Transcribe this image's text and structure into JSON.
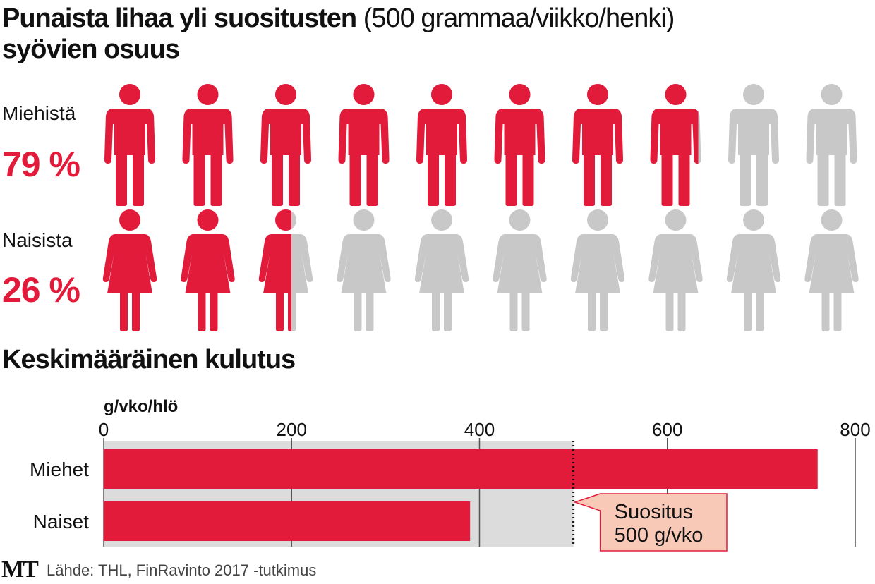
{
  "title": {
    "bold": "Punaista lihaa yli suositusten",
    "normal": "(500 grammaa/viikko/henki)",
    "line2": "syövien osuus"
  },
  "chart_data": [
    {
      "type": "pictogram",
      "categories": [
        "Miehistä",
        "Naisista"
      ],
      "values": [
        79,
        26
      ],
      "value_labels": [
        "79 %",
        "26 %"
      ],
      "icons": [
        "male",
        "female"
      ],
      "color": "#e31b3b",
      "base_color": "#c8c8c8"
    },
    {
      "type": "bar",
      "title": "Keskimääräinen kulutus",
      "xlabel": "g/vko/hlö",
      "categories": [
        "Miehet",
        "Naiset"
      ],
      "values": [
        760,
        390
      ],
      "color": "#e31b3b",
      "xlim": [
        0,
        800
      ],
      "xticks": [
        0,
        200,
        400,
        600,
        800
      ],
      "grid": true,
      "shade_color": "#dcdcdc",
      "reference": {
        "value": 500,
        "label": [
          "Suositus",
          "500 g/vko"
        ],
        "color": "#f9c9b8"
      }
    }
  ],
  "footer": {
    "logo": "MT",
    "source": "Lähde: THL, FinRavinto 2017 -tutkimus"
  }
}
